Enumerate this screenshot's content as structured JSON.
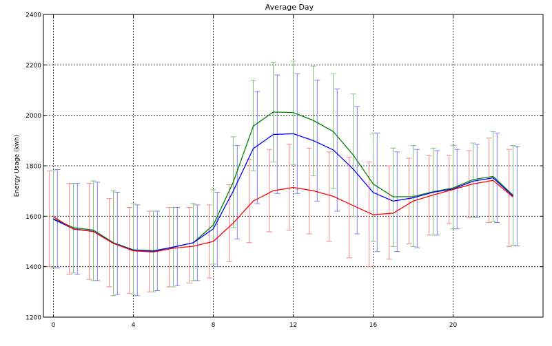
{
  "chart_data": {
    "type": "line",
    "title": "Average Day",
    "xlabel": "",
    "ylabel": "Energy Usage (kwh)",
    "xlim": [
      -0.5,
      24.5
    ],
    "ylim": [
      1200,
      2400
    ],
    "x_ticks": [
      0,
      4,
      8,
      12,
      16,
      20
    ],
    "y_ticks": [
      1200,
      1400,
      1600,
      1800,
      2000,
      2200,
      2400
    ],
    "grid": true,
    "grid_style": "dotted",
    "legend": "none",
    "x": [
      0,
      1,
      2,
      3,
      4,
      5,
      6,
      7,
      8,
      9,
      10,
      11,
      12,
      13,
      14,
      15,
      16,
      17,
      18,
      19,
      20,
      21,
      22,
      23
    ],
    "series": [
      {
        "color": "#ff0000",
        "errorbar_color": "#ff8080",
        "errorbar_offset": -0.2,
        "values": [
          1598,
          1549,
          1539,
          1492,
          1463,
          1458,
          1473,
          1481,
          1500,
          1573,
          1660,
          1701,
          1714,
          1701,
          1679,
          1642,
          1606,
          1612,
          1660,
          1684,
          1706,
          1728,
          1742,
          1676
        ],
        "lower": [
          1400,
          1370,
          1350,
          1320,
          1295,
          1300,
          1320,
          1335,
          1355,
          1420,
          1495,
          1538,
          1545,
          1530,
          1500,
          1435,
          1400,
          1430,
          1490,
          1525,
          1570,
          1595,
          1575,
          1480
        ],
        "upper": [
          1780,
          1730,
          1730,
          1670,
          1635,
          1620,
          1635,
          1635,
          1645,
          1725,
          1825,
          1865,
          1885,
          1870,
          1855,
          1835,
          1815,
          1800,
          1830,
          1840,
          1840,
          1860,
          1910,
          1865
        ]
      },
      {
        "color": "#008000",
        "errorbar_color": "#80c080",
        "errorbar_offset": 0.0,
        "values": [
          1590,
          1555,
          1545,
          1495,
          1467,
          1463,
          1477,
          1495,
          1565,
          1735,
          1957,
          2013,
          2011,
          1980,
          1936,
          1843,
          1728,
          1677,
          1678,
          1697,
          1712,
          1745,
          1758,
          1683
        ],
        "lower": [
          1395,
          1375,
          1345,
          1285,
          1290,
          1300,
          1320,
          1345,
          1410,
          1555,
          1780,
          1815,
          1805,
          1760,
          1710,
          1600,
          1500,
          1480,
          1480,
          1525,
          1550,
          1595,
          1580,
          1485
        ],
        "upper": [
          1780,
          1730,
          1740,
          1700,
          1650,
          1620,
          1635,
          1650,
          1705,
          1915,
          2140,
          2210,
          2215,
          2195,
          2165,
          2085,
          1930,
          1870,
          1880,
          1870,
          1880,
          1890,
          1935,
          1880
        ]
      },
      {
        "color": "#0000ff",
        "errorbar_color": "#8080ff",
        "errorbar_offset": 0.2,
        "values": [
          1588,
          1550,
          1540,
          1493,
          1465,
          1461,
          1478,
          1495,
          1550,
          1700,
          1868,
          1924,
          1927,
          1900,
          1863,
          1787,
          1694,
          1660,
          1673,
          1695,
          1708,
          1739,
          1752,
          1680
        ],
        "lower": [
          1395,
          1370,
          1345,
          1290,
          1285,
          1305,
          1325,
          1345,
          1400,
          1510,
          1650,
          1690,
          1690,
          1660,
          1620,
          1530,
          1460,
          1460,
          1475,
          1525,
          1550,
          1595,
          1575,
          1482
        ],
        "upper": [
          1785,
          1730,
          1735,
          1695,
          1645,
          1620,
          1635,
          1645,
          1695,
          1880,
          2095,
          2160,
          2165,
          2140,
          2105,
          2035,
          1930,
          1855,
          1865,
          1860,
          1865,
          1885,
          1930,
          1878
        ]
      }
    ]
  }
}
